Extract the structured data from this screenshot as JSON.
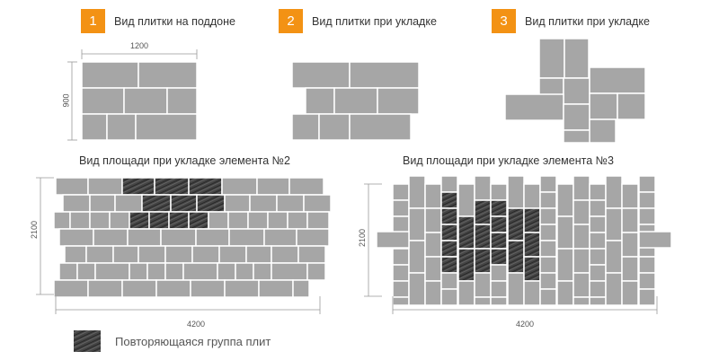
{
  "steps": [
    {
      "number": "1",
      "title": "Вид плитки на поддоне"
    },
    {
      "number": "2",
      "title": "Вид плитки при укладке"
    },
    {
      "number": "3",
      "title": "Вид плитки при укладке"
    }
  ],
  "pallet_dimensions": {
    "width": "1200",
    "height": "900"
  },
  "layout_2": {
    "caption": "Вид площади при укладке элемента №2",
    "height_label": "2100",
    "width_label": "4200"
  },
  "layout_3": {
    "caption": "Вид площади при укладке элемента №3",
    "height_label": "2100",
    "width_label": "4200"
  },
  "legend": {
    "label": "Повторяющаяся группа плит"
  },
  "colors": {
    "accent": "#f39214",
    "tile": "#a6a6a6",
    "grout": "#ffffff",
    "pattern": "#3a3a3a"
  }
}
